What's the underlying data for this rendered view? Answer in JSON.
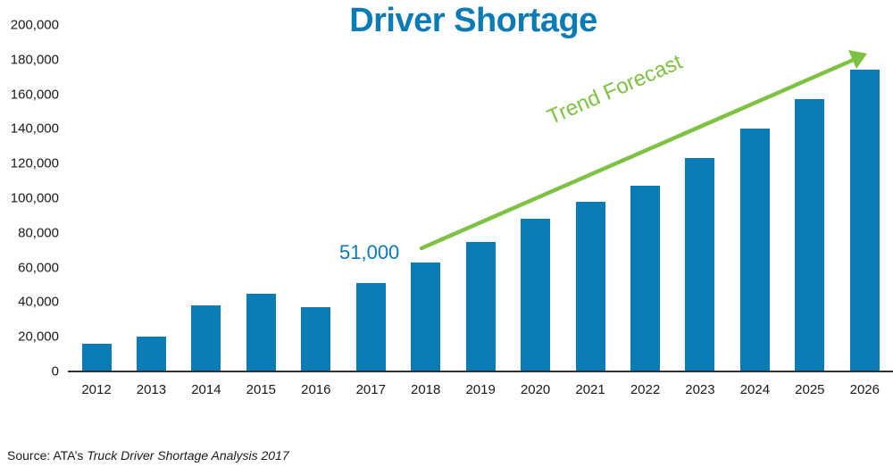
{
  "chart_data": {
    "type": "bar",
    "title": "Driver Shortage",
    "xlabel": "",
    "ylabel": "",
    "ylim": [
      0,
      200000
    ],
    "yticks": [
      "200,000",
      "180,000",
      "160,000",
      "140,000",
      "120,000",
      "100,000",
      "80,000",
      "60,000",
      "40,000",
      "20,000",
      "0"
    ],
    "categories": [
      "2012",
      "2013",
      "2014",
      "2015",
      "2016",
      "2017",
      "2018",
      "2019",
      "2020",
      "2021",
      "2022",
      "2023",
      "2024",
      "2025",
      "2026"
    ],
    "values": [
      16000,
      20000,
      38000,
      45000,
      37000,
      51000,
      63000,
      75000,
      88000,
      98000,
      107000,
      123000,
      140000,
      157000,
      174000
    ],
    "series": [
      {
        "name": "Driver Shortage",
        "color": "#0a7bb5",
        "values": [
          16000,
          20000,
          38000,
          45000,
          37000,
          51000,
          63000,
          75000,
          88000,
          98000,
          107000,
          123000,
          140000,
          157000,
          174000
        ]
      }
    ],
    "annotations": [
      {
        "text": "51,000",
        "target": "2017",
        "color": "#0a7bb5"
      },
      {
        "text": "Trend Forecast",
        "type": "arrow",
        "from": "2018",
        "to": "2026",
        "color": "#7dc242"
      }
    ],
    "grid": false,
    "legend": null
  },
  "title": "Driver Shortage",
  "callout": "51,000",
  "trend_label": "Trend Forecast",
  "source": {
    "prefix": "Source: ATA’s ",
    "title": "Truck Driver Shortage Analysis 2017"
  },
  "colors": {
    "bar": "#0a7bb5",
    "title": "#0a7bb5",
    "trend": "#7dc242",
    "text": "#1a1a1a"
  }
}
